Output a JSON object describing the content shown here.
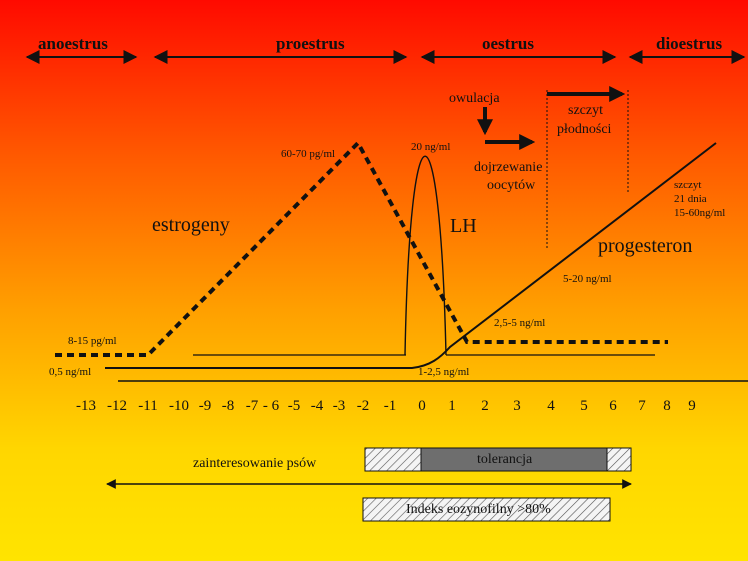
{
  "phases": {
    "anoestrus": "anoestrus",
    "proestrus": "proestrus",
    "oestrus": "oestrus",
    "dioestrus": "dioestrus"
  },
  "labels": {
    "owulacja": "owulacja",
    "szczyt_line1": "szczyt",
    "szczyt_line2": "płodności",
    "dojrzewanie_line1": "dojrzewanie",
    "dojrzewanie_line2": "oocytów",
    "estrogeny": "estrogeny",
    "lh": "LH",
    "progesteron": "progesteron",
    "szczyt21_line1": "szczyt",
    "szczyt21_line2": "21 dnia",
    "szczyt21_line3": "15-60ng/ml",
    "val_60_70": "60-70 pg/ml",
    "val_20": "20 ng/ml",
    "val_5_20": "5-20 ng/ml",
    "val_25_5": "2,5-5 ng/ml",
    "val_8_15": "8-15 pg/ml",
    "val_05": "0,5 ng/ml",
    "val_1_25": "1-2,5 ng/ml"
  },
  "axis_ticks": [
    "-13",
    "-12",
    "-11",
    "-10",
    "-9",
    "-8",
    "-7",
    "- 6",
    "-5",
    "-4",
    "-3",
    "-2",
    "-1",
    "0",
    "1",
    "2",
    "3",
    "4",
    "5",
    "6",
    "7",
    "8",
    "9"
  ],
  "bars": {
    "interest_label": "zainteresowanie psów",
    "tolerance_label": "tolerancja",
    "eos_label": "Indeks eozynofilny >80%"
  },
  "colors": {
    "ink": "#111111",
    "tolerance_fill": "#6e6e6e"
  }
}
